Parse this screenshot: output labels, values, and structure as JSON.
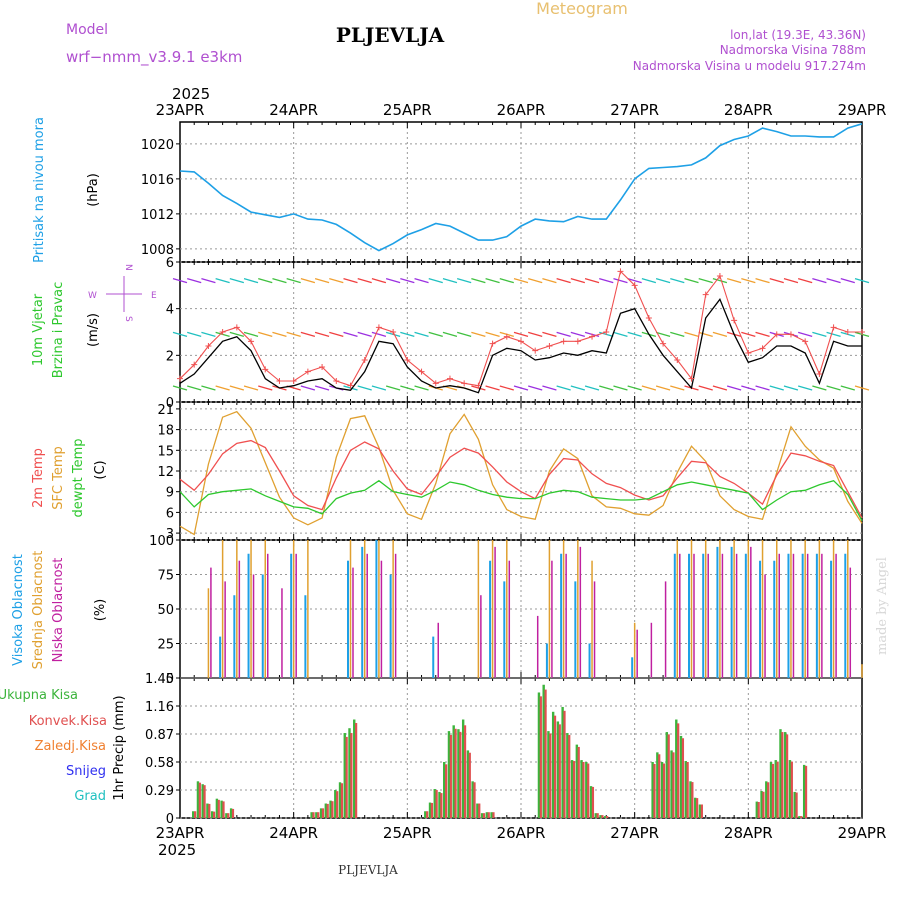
{
  "header": {
    "model_label": "Model",
    "model_name": "wrf−nmm_v3.9.1  e3km",
    "station": "PLJEVLJA",
    "title": "Meteogram",
    "lonlat": "lon,lat (19.3E, 43.36N)",
    "elevation": "Nadmorska Visina 788m",
    "model_elevation": "Nadmorska Visina u modelu 917.274m",
    "year_top": "2025",
    "year_bottom": "2025",
    "footer_station": "PLJEVLJA",
    "credit": "made by Angel"
  },
  "colors": {
    "pressure": "#1ea0e6",
    "wind_label": "#2ec82e",
    "wind_speed_line": "#000000",
    "wind_gust": "#f05050",
    "temp2m": "#f05050",
    "sfc_temp": "#e0a030",
    "dewpoint": "#2ec82e",
    "cloud_high": "#1ea0e6",
    "cloud_mid": "#e0a030",
    "cloud_low": "#c020a0",
    "precip_total": "#3cb43c",
    "precip_conv": "#e05050",
    "precip_frz": "#f08030",
    "precip_snow": "#3030f0",
    "precip_grad": "#20c0c0",
    "meta_text": "#b050d0"
  },
  "days": [
    "23APR",
    "24APR",
    "25APR",
    "26APR",
    "27APR",
    "28APR",
    "29APR"
  ],
  "panels": {
    "pressure": {
      "label": "Pritisak na nivou mora",
      "unit": "(hPa)",
      "ticks": [
        "1008",
        "1012",
        "1016",
        "1020"
      ]
    },
    "wind": {
      "label1": "10m Vjetar",
      "label2": "Brzina i Pravac",
      "unit": "(m/s)",
      "ticks": [
        "0",
        "2",
        "4",
        "6"
      ],
      "compass": {
        "n": "N",
        "s": "S",
        "e": "E",
        "w": "W"
      }
    },
    "temp": {
      "label1": "2m Temp",
      "label2": "SFC Temp",
      "label3": "dewpt Temp",
      "unit": "(C)",
      "ticks": [
        "3",
        "6",
        "9",
        "12",
        "15",
        "18",
        "21"
      ]
    },
    "cloud": {
      "label1": "Visoka Oblacnost",
      "label2": "Srednja Oblacnost",
      "label3": "Niska Oblacnost",
      "unit": "(%)",
      "ticks": [
        "0",
        "25",
        "50",
        "75",
        "100"
      ]
    },
    "precip": {
      "labels": [
        "Ukupna Kisa",
        "Konvek.Kisa",
        "Zaledj.Kisa",
        "Snijeg",
        "Grad"
      ],
      "unit": "1hr Precip (mm)",
      "ticks": [
        "0",
        "0.29",
        "0.58",
        "0.87",
        "1.16",
        "1.45"
      ]
    }
  },
  "chart_data": [
    {
      "type": "line",
      "title": "Pritisak na nivou mora",
      "ylabel": "hPa",
      "ylim": [
        1006.5,
        1022.5
      ],
      "x_hours": [
        0,
        3,
        6,
        9,
        12,
        15,
        18,
        21,
        24,
        27,
        30,
        33,
        36,
        39,
        42,
        45,
        48,
        51,
        54,
        57,
        60,
        63,
        66,
        69,
        72,
        75,
        78,
        81,
        84,
        87,
        90,
        93,
        96,
        99,
        102,
        105,
        108,
        111,
        114,
        117,
        120,
        123,
        126,
        129,
        132,
        135,
        138,
        141,
        144
      ],
      "series": [
        {
          "name": "Pritisak",
          "values": [
            1016.9,
            1016.8,
            1015.5,
            1014.1,
            1013.2,
            1012.2,
            1011.9,
            1011.6,
            1012.0,
            1011.4,
            1011.3,
            1010.8,
            1009.8,
            1008.7,
            1007.8,
            1008.6,
            1009.6,
            1010.2,
            1010.9,
            1010.6,
            1009.8,
            1009.0,
            1009.0,
            1009.4,
            1010.6,
            1011.4,
            1011.2,
            1011.1,
            1011.7,
            1011.4,
            1011.4,
            1013.6,
            1016.0,
            1017.2,
            1017.3,
            1017.4,
            1017.6,
            1018.4,
            1019.8,
            1020.5,
            1020.9,
            1021.8,
            1021.4,
            1020.9,
            1020.9,
            1020.8,
            1020.8,
            1021.8,
            1022.3
          ]
        }
      ]
    },
    {
      "type": "line",
      "title": "10m Vjetar Brzina i Pravac",
      "ylabel": "m/s",
      "ylim": [
        0,
        6
      ],
      "x_hours": [
        0,
        3,
        6,
        9,
        12,
        15,
        18,
        21,
        24,
        27,
        30,
        33,
        36,
        39,
        42,
        45,
        48,
        51,
        54,
        57,
        60,
        63,
        66,
        69,
        72,
        75,
        78,
        81,
        84,
        87,
        90,
        93,
        96,
        99,
        102,
        105,
        108,
        111,
        114,
        117,
        120,
        123,
        126,
        129,
        132,
        135,
        138,
        141,
        144
      ],
      "series": [
        {
          "name": "Brzina",
          "values": [
            0.8,
            1.2,
            1.9,
            2.6,
            2.8,
            2.2,
            1.0,
            0.6,
            0.7,
            0.9,
            1.0,
            0.6,
            0.5,
            1.3,
            2.6,
            2.5,
            1.5,
            0.9,
            0.6,
            0.7,
            0.6,
            0.4,
            2.0,
            2.3,
            2.2,
            1.8,
            1.9,
            2.1,
            2.0,
            2.2,
            2.1,
            3.8,
            4.0,
            2.9,
            2.0,
            1.3,
            0.6,
            3.6,
            4.4,
            2.9,
            1.7,
            1.9,
            2.4,
            2.4,
            2.1,
            0.8,
            2.6,
            2.4,
            2.4
          ]
        },
        {
          "name": "Udar",
          "values": [
            1.0,
            1.6,
            2.4,
            3.0,
            3.2,
            2.6,
            1.4,
            0.9,
            0.9,
            1.3,
            1.5,
            0.9,
            0.7,
            1.8,
            3.2,
            3.0,
            1.8,
            1.3,
            0.8,
            1.0,
            0.8,
            0.7,
            2.5,
            2.8,
            2.6,
            2.2,
            2.4,
            2.6,
            2.6,
            2.8,
            3.0,
            5.6,
            5.0,
            3.6,
            2.5,
            1.8,
            1.0,
            4.6,
            5.4,
            3.5,
            2.1,
            2.3,
            2.9,
            2.9,
            2.6,
            1.2,
            3.2,
            3.0,
            3.0
          ]
        }
      ]
    },
    {
      "type": "line",
      "title": "Temperatura",
      "ylabel": "C",
      "ylim": [
        2,
        22
      ],
      "x_hours": [
        0,
        3,
        6,
        9,
        12,
        15,
        18,
        21,
        24,
        27,
        30,
        33,
        36,
        39,
        42,
        45,
        48,
        51,
        54,
        57,
        60,
        63,
        66,
        69,
        72,
        75,
        78,
        81,
        84,
        87,
        90,
        93,
        96,
        99,
        102,
        105,
        108,
        111,
        114,
        117,
        120,
        123,
        126,
        129,
        132,
        135,
        138,
        141,
        144
      ],
      "series": [
        {
          "name": "2m Temp",
          "values": [
            10.8,
            9.2,
            11.5,
            14.5,
            16.0,
            16.4,
            15.4,
            12.0,
            8.4,
            7.0,
            6.4,
            11.0,
            15.0,
            16.2,
            15.2,
            12.0,
            9.4,
            8.6,
            11.2,
            14.0,
            15.3,
            14.6,
            12.6,
            10.4,
            9.0,
            8.0,
            11.5,
            13.8,
            13.6,
            11.6,
            10.2,
            9.6,
            8.5,
            7.8,
            8.4,
            11.0,
            13.4,
            13.2,
            11.2,
            10.2,
            8.8,
            7.2,
            11.4,
            14.6,
            14.2,
            13.4,
            12.8,
            9.0,
            5.2
          ]
        },
        {
          "name": "SFC Temp",
          "values": [
            4.0,
            2.8,
            13.0,
            19.8,
            20.6,
            18.2,
            13.2,
            8.2,
            5.2,
            4.2,
            5.2,
            14.0,
            19.6,
            20.0,
            15.4,
            9.2,
            5.8,
            5.0,
            10.2,
            17.4,
            20.2,
            16.6,
            10.0,
            6.4,
            5.4,
            5.0,
            12.0,
            15.2,
            13.8,
            8.4,
            6.8,
            6.6,
            5.8,
            5.6,
            7.0,
            11.8,
            15.6,
            13.4,
            8.4,
            6.4,
            5.4,
            5.0,
            11.8,
            18.4,
            15.6,
            13.6,
            12.4,
            7.6,
            4.4
          ]
        },
        {
          "name": "dewpt Temp",
          "values": [
            9.0,
            6.8,
            8.6,
            9.0,
            9.2,
            9.4,
            8.4,
            7.6,
            6.8,
            6.6,
            5.8,
            8.0,
            8.8,
            9.2,
            10.6,
            9.0,
            8.6,
            8.2,
            9.2,
            10.4,
            10.0,
            9.2,
            8.6,
            8.2,
            8.0,
            8.0,
            8.8,
            9.2,
            9.0,
            8.2,
            8.0,
            7.8,
            7.8,
            8.0,
            9.0,
            10.0,
            10.4,
            10.0,
            9.6,
            9.2,
            8.8,
            6.4,
            7.8,
            9.0,
            9.2,
            10.0,
            10.6,
            8.6,
            4.8
          ]
        }
      ]
    },
    {
      "type": "bar",
      "title": "Oblacnost",
      "ylabel": "%",
      "ylim": [
        0,
        100
      ],
      "x_hours": [
        6,
        9,
        12,
        15,
        18,
        21,
        24,
        27,
        30,
        33,
        36,
        39,
        42,
        45,
        48,
        51,
        54,
        57,
        60,
        63,
        66,
        69,
        72,
        75,
        78,
        81,
        84,
        87,
        90,
        93,
        96,
        99,
        102,
        105,
        108,
        111,
        114,
        117,
        120,
        123,
        126,
        129,
        132,
        135,
        138,
        141,
        144
      ],
      "series": [
        {
          "name": "Visoka Oblacnost",
          "values": [
            0,
            30,
            60,
            90,
            75,
            0,
            90,
            60,
            0,
            0,
            85,
            95,
            100,
            75,
            0,
            0,
            30,
            0,
            0,
            0,
            85,
            70,
            0,
            0,
            25,
            90,
            70,
            25,
            0,
            0,
            15,
            0,
            0,
            90,
            90,
            90,
            95,
            95,
            90,
            85,
            85,
            90,
            90,
            90,
            85,
            90,
            0
          ]
        },
        {
          "name": "Srednja Oblacnost",
          "values": [
            65,
            100,
            100,
            100,
            100,
            0,
            100,
            100,
            0,
            0,
            100,
            100,
            100,
            100,
            0,
            0,
            0,
            0,
            0,
            100,
            100,
            100,
            0,
            0,
            100,
            100,
            100,
            85,
            0,
            0,
            40,
            0,
            0,
            100,
            100,
            100,
            100,
            100,
            100,
            100,
            100,
            100,
            100,
            100,
            100,
            100,
            10
          ]
        },
        {
          "name": "Niska Oblacnost",
          "values": [
            80,
            70,
            85,
            75,
            90,
            65,
            90,
            0,
            0,
            0,
            80,
            90,
            85,
            90,
            0,
            0,
            40,
            0,
            0,
            60,
            95,
            85,
            0,
            45,
            85,
            90,
            95,
            70,
            0,
            0,
            35,
            40,
            70,
            90,
            90,
            90,
            90,
            90,
            95,
            75,
            90,
            90,
            90,
            90,
            90,
            80,
            0
          ]
        }
      ]
    },
    {
      "type": "bar",
      "title": "1hr Precip",
      "ylabel": "mm",
      "ylim": [
        0,
        1.45
      ],
      "x_hours": [
        3,
        4,
        5,
        6,
        7,
        8,
        9,
        10,
        11,
        28,
        29,
        30,
        31,
        32,
        33,
        34,
        35,
        36,
        37,
        52,
        53,
        54,
        55,
        56,
        57,
        58,
        59,
        60,
        61,
        62,
        63,
        64,
        65,
        66,
        76,
        77,
        78,
        79,
        80,
        81,
        82,
        83,
        84,
        85,
        86,
        87,
        88,
        89,
        90,
        100,
        101,
        102,
        103,
        104,
        105,
        106,
        107,
        108,
        109,
        110,
        122,
        123,
        124,
        125,
        126,
        127,
        128,
        129,
        130,
        131,
        132
      ],
      "series": [
        {
          "name": "Ukupna Kisa",
          "values": [
            0.07,
            0.38,
            0.35,
            0.15,
            0.07,
            0.2,
            0.18,
            0.05,
            0.1,
            0.06,
            0.06,
            0.1,
            0.15,
            0.18,
            0.29,
            0.37,
            0.88,
            0.93,
            1.02,
            0.07,
            0.16,
            0.3,
            0.27,
            0.58,
            0.9,
            0.96,
            0.92,
            1.02,
            0.7,
            0.38,
            0.15,
            0.05,
            0.06,
            0.06,
            1.3,
            1.38,
            0.9,
            1.1,
            1.0,
            1.15,
            0.88,
            0.6,
            0.76,
            0.6,
            0.58,
            0.33,
            0.05,
            0.03,
            0.02,
            0.58,
            0.68,
            0.58,
            0.89,
            0.7,
            1.02,
            0.85,
            0.59,
            0.38,
            0.21,
            0.14,
            0.17,
            0.28,
            0.38,
            0.58,
            0.6,
            0.92,
            0.89,
            0.6,
            0.27,
            0.02,
            0.55
          ]
        },
        {
          "name": "Konvek.Kisa",
          "values": [
            0.0,
            0.07,
            0.05,
            0.02,
            0.02,
            0.06,
            0.04,
            0.0,
            0.03,
            0.0,
            0.0,
            0.0,
            0.02,
            0.03,
            0.06,
            0.05,
            0.2,
            0.25,
            0.18,
            0.0,
            0.02,
            0.05,
            0.06,
            0.12,
            0.2,
            0.18,
            0.14,
            0.3,
            0.12,
            0.05,
            0.0,
            0.0,
            0.0,
            0.0,
            0.2,
            0.25,
            0.12,
            0.2,
            0.15,
            0.2,
            0.1,
            0.05,
            0.12,
            0.1,
            0.08,
            0.04,
            0.0,
            0.0,
            0.0,
            0.1,
            0.1,
            0.08,
            0.12,
            0.1,
            0.2,
            0.12,
            0.05,
            0.04,
            0.02,
            0.0,
            0.02,
            0.04,
            0.05,
            0.1,
            0.08,
            0.15,
            0.12,
            0.08,
            0.03,
            0.0,
            0.05
          ]
        }
      ]
    }
  ]
}
